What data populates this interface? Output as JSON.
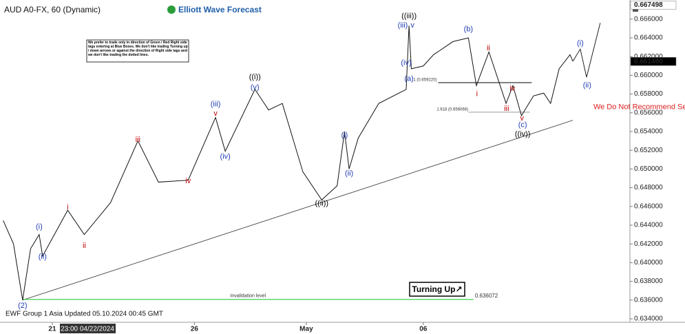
{
  "chart_data": {
    "type": "line",
    "title": "AUD A0-FX, 60 (Dynamic)",
    "brand": "Elliott Wave Forecast",
    "note": "We prefer to trade only in direction of Green / Red Right side tags entering at Blue Boxes. We don't like trading Turning up / down arrows or against the direction of Right side tags and we don't like trading the dotted lines.",
    "footer": "EWF Group 1 Asia Updated 05.10.2024 00:45 GMT",
    "cursor_label": "23:00 04/22/2024",
    "badge": "Turning Up↗",
    "x": [
      0.2,
      2,
      3.6,
      5,
      6.5,
      7.1,
      11.5,
      14.4,
      19,
      23.8,
      27.4,
      32.6,
      37.4,
      39.1,
      44.3,
      46.7,
      49.1,
      52.7,
      56,
      58.7,
      60,
      60.8,
      62.4,
      66,
      70.8,
      71.3,
      71.7,
      73.8,
      75.6,
      79,
      81.7,
      83.1,
      85.3,
      88.3,
      89.5,
      91,
      93.1,
      94.9,
      96.1,
      97.6,
      99.5,
      100
    ],
    "values": [
      0.6445,
      0.642,
      0.636,
      0.6415,
      0.643,
      0.6407,
      0.6456,
      0.643,
      0.6464,
      0.653,
      0.6486,
      0.6488,
      0.6555,
      0.6519,
      0.6585,
      0.6563,
      0.657,
      0.6497,
      0.6467,
      0.6482,
      0.654,
      0.65,
      0.6533,
      0.657,
      0.6585,
      0.6653,
      0.6607,
      0.661,
      0.6622,
      0.6636,
      0.664,
      0.6589,
      0.6625,
      0.657,
      0.6589,
      0.6557,
      0.6578,
      0.6581,
      0.657,
      0.6607,
      0.6622,
      0.6615
    ],
    "color": "#111111",
    "projection": {
      "x": [
        100,
        101.3,
        102.4,
        104.8
      ],
      "values": [
        0.6615,
        0.6628,
        0.6598,
        0.6656
      ],
      "color": "#222222"
    },
    "trendline": {
      "x": [
        3.6,
        100
      ],
      "values": [
        0.636,
        0.6552
      ],
      "color": "#333333"
    },
    "invalidation": {
      "label": "Invalidation level",
      "value": 0.636072,
      "x": [
        3.6,
        82.6
      ],
      "color": "#2ecc40"
    },
    "fib_levels": [
      {
        "label": "1 (0.659220)",
        "value": 0.65922,
        "x": [
          76.4,
          92.8
        ],
        "color": "#000000"
      },
      {
        "label": "1.618 (0.656066)",
        "value": 0.656066,
        "x": [
          81.7,
          92.5
        ],
        "color": "#999999"
      }
    ],
    "price_labels": [
      {
        "value": 0.667498,
        "label": "0.667498",
        "color": "#ffffff"
      },
      {
        "value": 0.66148,
        "label": "0.661480",
        "color": "#000000"
      }
    ],
    "annotations": [
      {
        "text": "(2)",
        "x": 3.6,
        "y": 0.6354,
        "color": "#1f3bb3"
      },
      {
        "text": "(i)",
        "x": 6.5,
        "y": 0.6438,
        "color": "#1f3bb3"
      },
      {
        "text": "(ii)",
        "x": 7.1,
        "y": 0.6406,
        "color": "#1f3bb3"
      },
      {
        "text": "i",
        "x": 11.5,
        "y": 0.6459,
        "color": "#c00000"
      },
      {
        "text": "ii",
        "x": 14.4,
        "y": 0.6418,
        "color": "#c00000"
      },
      {
        "text": "iii",
        "x": 23.8,
        "y": 0.6531,
        "color": "#c00000"
      },
      {
        "text": "iv",
        "x": 32.6,
        "y": 0.6487,
        "color": "#c00000"
      },
      {
        "text": "(iii)",
        "x": 37.4,
        "y": 0.6569,
        "color": "#1f3bb3"
      },
      {
        "text": "v",
        "x": 37.4,
        "y": 0.6559,
        "color": "#c00000"
      },
      {
        "text": "(iv)",
        "x": 39.1,
        "y": 0.6513,
        "color": "#1f3bb3"
      },
      {
        "text": "((i))",
        "x": 44.3,
        "y": 0.6598,
        "color": "#000000"
      },
      {
        "text": "(v)",
        "x": 44.3,
        "y": 0.6587,
        "color": "#1f3bb3"
      },
      {
        "text": "((ii))",
        "x": 56,
        "y": 0.6463,
        "color": "#000000"
      },
      {
        "text": "(i)",
        "x": 60,
        "y": 0.6536,
        "color": "#1f3bb3"
      },
      {
        "text": "(ii)",
        "x": 60.8,
        "y": 0.6495,
        "color": "#1f3bb3"
      },
      {
        "text": "(a)",
        "x": 71.3,
        "y": 0.6596,
        "color": "#1f3bb3"
      },
      {
        "text": "(iv)",
        "x": 70.8,
        "y": 0.6613,
        "color": "#1f3bb3"
      },
      {
        "text": "(iii)",
        "x": 70.2,
        "y": 0.6653,
        "color": "#1f3bb3"
      },
      {
        "text": "v",
        "x": 71.9,
        "y": 0.6653,
        "color": "#1f3bb3"
      },
      {
        "text": "((iii))",
        "x": 71.3,
        "y": 0.6663,
        "color": "#000000"
      },
      {
        "text": "(b)",
        "x": 81.7,
        "y": 0.6649,
        "color": "#1f3bb3"
      },
      {
        "text": "i",
        "x": 83.2,
        "y": 0.658,
        "color": "#c00000"
      },
      {
        "text": "ii",
        "x": 85.2,
        "y": 0.6629,
        "color": "#c00000"
      },
      {
        "text": "iii",
        "x": 88.4,
        "y": 0.6564,
        "color": "#c00000"
      },
      {
        "text": "iv",
        "x": 89.4,
        "y": 0.6586,
        "color": "#c00000"
      },
      {
        "text": "v",
        "x": 91.1,
        "y": 0.6554,
        "color": "#c00000"
      },
      {
        "text": "(c)",
        "x": 91.2,
        "y": 0.6547,
        "color": "#1f3bb3"
      },
      {
        "text": "((iv))",
        "x": 91.2,
        "y": 0.6537,
        "color": "#000000"
      },
      {
        "text": "(i)",
        "x": 101.3,
        "y": 0.6634,
        "color": "#1f3bb3"
      },
      {
        "text": "(ii)",
        "x": 102.5,
        "y": 0.6589,
        "color": "#1f3bb3"
      },
      {
        "text": "We Do Not Recommend Selling",
        "x": 103.6,
        "y": 0.6566,
        "color": "#e02020"
      }
    ],
    "xlim": [
      0,
      110
    ],
    "xticks": [
      {
        "value": 8.8,
        "label": "21"
      },
      {
        "value": 33.7,
        "label": "26"
      },
      {
        "value": 53.3,
        "label": "May"
      },
      {
        "value": 73.8,
        "label": "06"
      }
    ],
    "ylim": [
      0.63378,
      0.66782
    ],
    "yticks": [
      {
        "value": 0.634,
        "label": "0.634000"
      },
      {
        "value": 0.636,
        "label": "0.636000"
      },
      {
        "value": 0.638,
        "label": "0.638000"
      },
      {
        "value": 0.64,
        "label": "0.640000"
      },
      {
        "value": 0.642,
        "label": "0.642000"
      },
      {
        "value": 0.644,
        "label": "0.644000"
      },
      {
        "value": 0.646,
        "label": "0.646000"
      },
      {
        "value": 0.648,
        "label": "0.648000"
      },
      {
        "value": 0.65,
        "label": "0.650000"
      },
      {
        "value": 0.652,
        "label": "0.652000"
      },
      {
        "value": 0.654,
        "label": "0.654000"
      },
      {
        "value": 0.656,
        "label": "0.656000"
      },
      {
        "value": 0.658,
        "label": "0.658000"
      },
      {
        "value": 0.66,
        "label": "0.660000"
      },
      {
        "value": 0.662,
        "label": "0.662000"
      },
      {
        "value": 0.664,
        "label": "0.664000"
      },
      {
        "value": 0.666,
        "label": "0.666000"
      }
    ],
    "grid": false
  }
}
